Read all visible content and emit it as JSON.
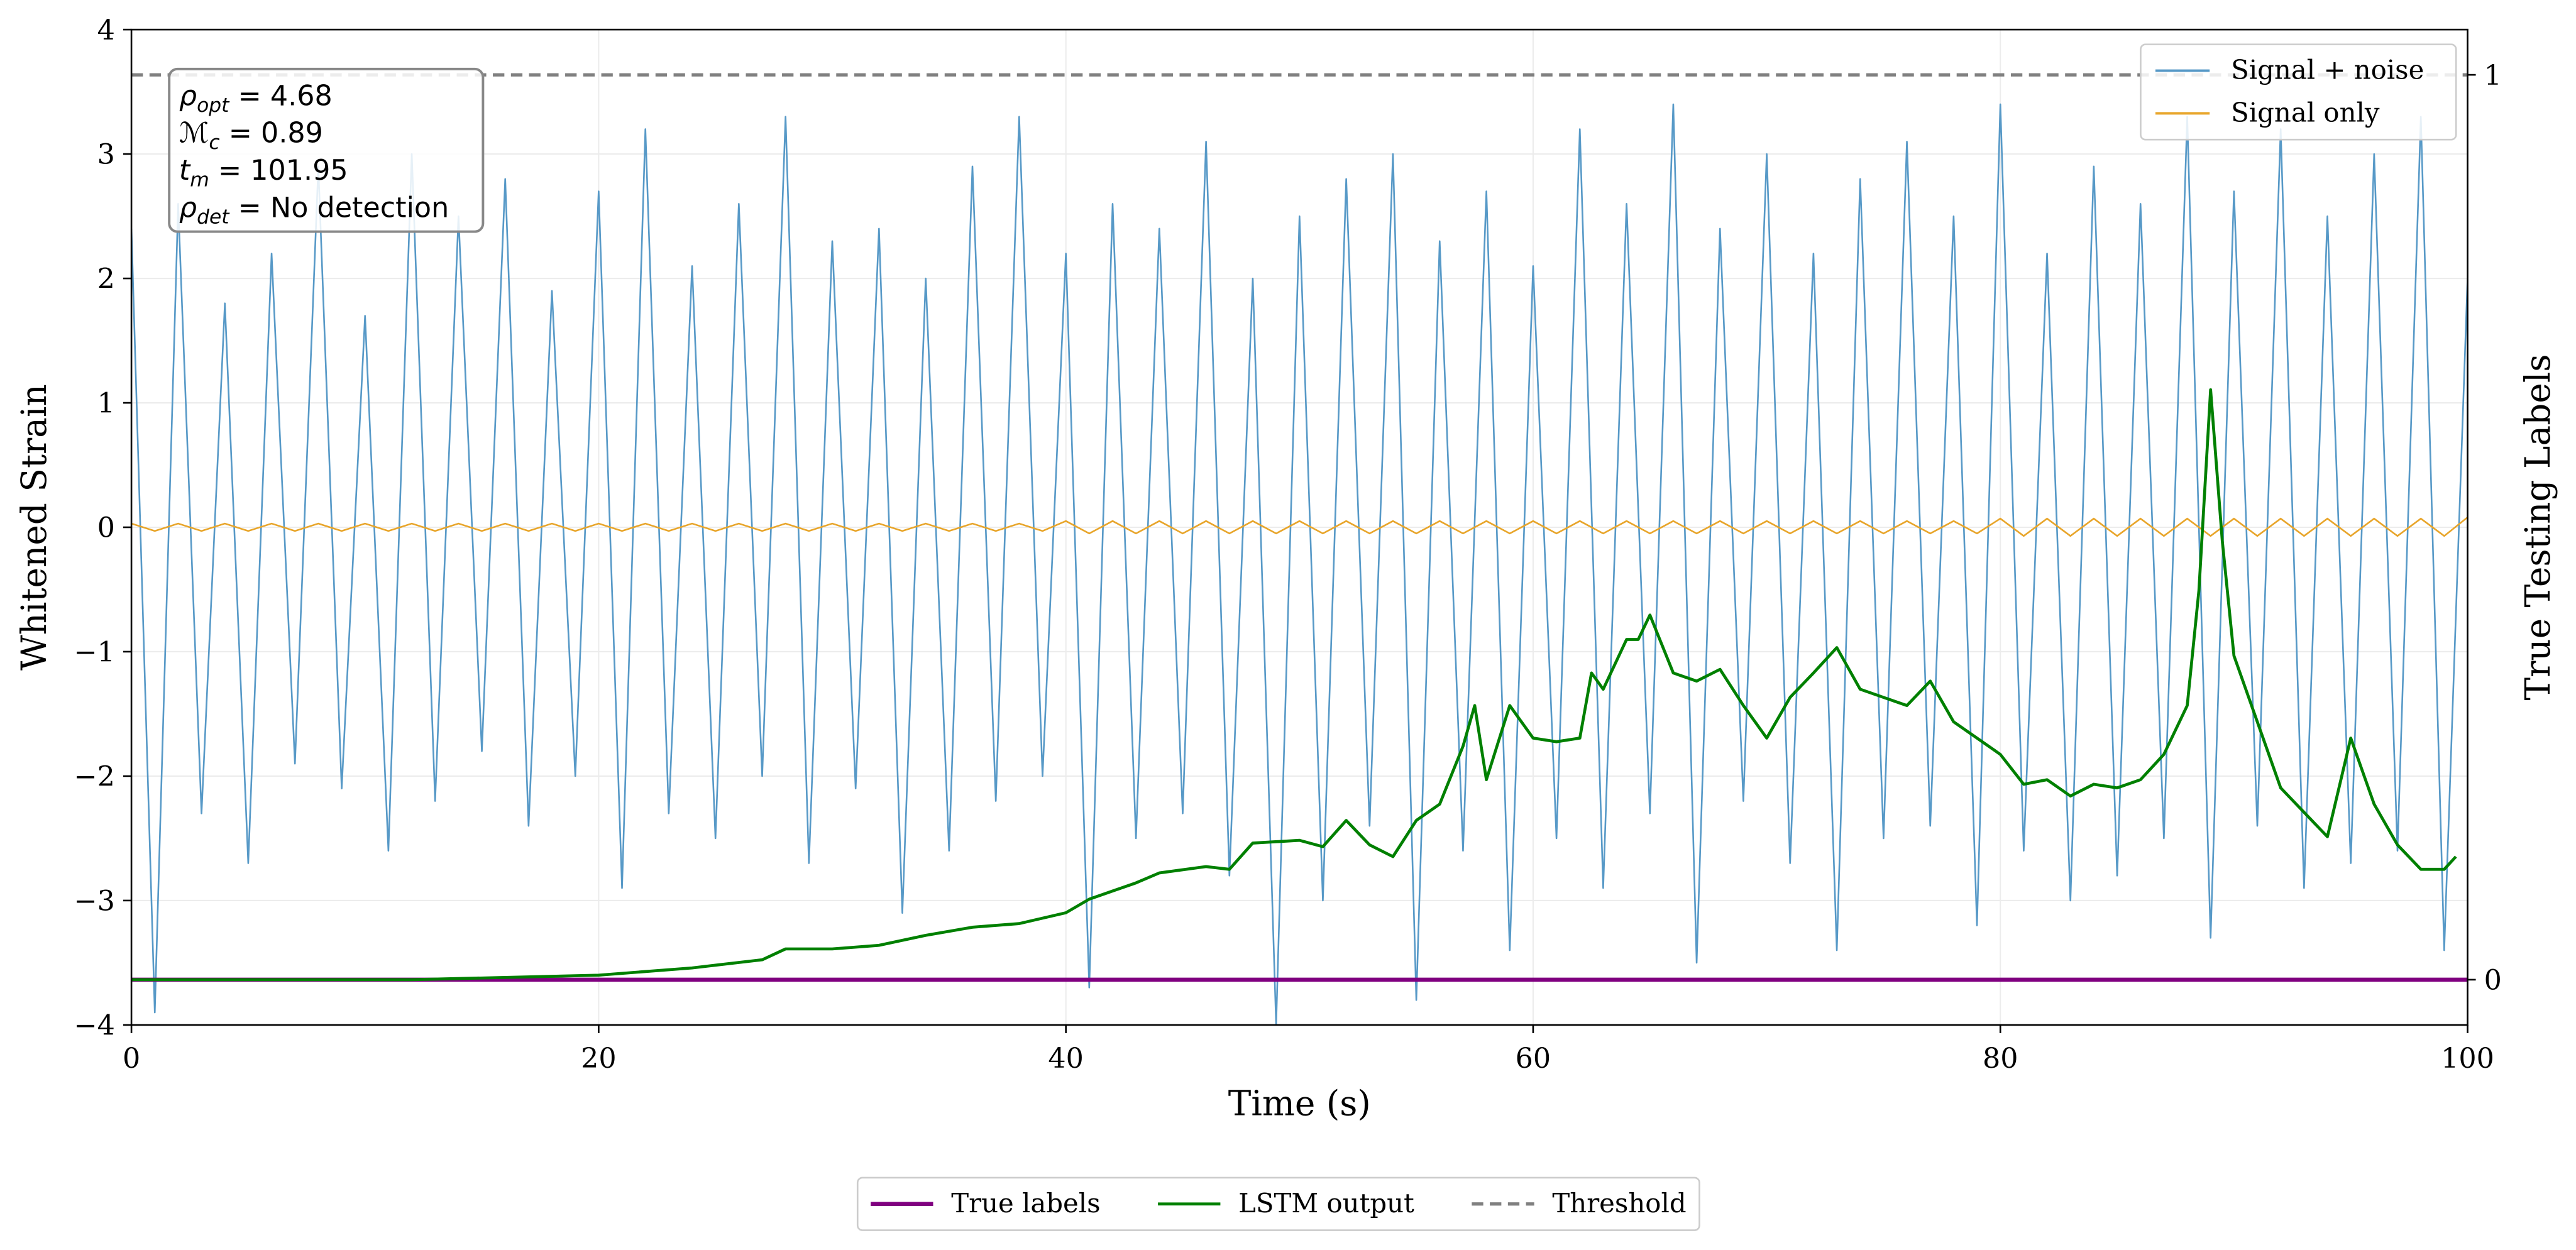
{
  "chart_data": {
    "type": "line",
    "xlabel": "Time (s)",
    "ylabel": "Whitened Strain",
    "y2label": "True Testing Labels",
    "xlim": [
      0,
      100
    ],
    "xticks": [
      0,
      20,
      40,
      60,
      80,
      100
    ],
    "ylim": [
      -4,
      4
    ],
    "yticks": [
      {
        "value": -4,
        "label": "−4"
      },
      {
        "value": -3,
        "label": "−3"
      },
      {
        "value": -2,
        "label": "−2"
      },
      {
        "value": -1,
        "label": "−1"
      },
      0,
      1,
      2,
      3,
      4
    ],
    "y2lim": [
      -0.05,
      1.05
    ],
    "y2ticks": [
      0,
      1
    ],
    "grid": true,
    "annotations": [
      {
        "symbol": "ρ",
        "sub": "opt",
        "text": " = 4.68"
      },
      {
        "symbol": "ℳ",
        "sub": "c",
        "text": " = 0.89"
      },
      {
        "symbol": "t",
        "sub": "m",
        "text": " = 101.95"
      },
      {
        "symbol": "ρ",
        "sub": "det",
        "text": " = No detection"
      }
    ],
    "x": [
      0,
      1,
      2,
      3,
      4,
      5,
      6,
      7,
      8,
      9,
      10,
      11,
      12,
      13,
      14,
      15,
      16,
      17,
      18,
      19,
      20,
      21,
      22,
      23,
      24,
      25,
      26,
      27,
      28,
      29,
      30,
      31,
      32,
      33,
      34,
      35,
      36,
      37,
      38,
      39,
      40,
      41,
      42,
      43,
      44,
      45,
      46,
      47,
      48,
      49,
      50,
      51,
      52,
      53,
      54,
      55,
      56,
      57,
      58,
      59,
      60,
      61,
      62,
      63,
      64,
      65,
      66,
      67,
      68,
      69,
      70,
      71,
      72,
      73,
      74,
      75,
      76,
      77,
      78,
      79,
      80,
      81,
      82,
      83,
      84,
      85,
      86,
      87,
      88,
      89,
      90,
      91,
      92,
      93,
      94,
      95,
      96,
      97,
      98,
      99,
      100
    ],
    "series": [
      {
        "name": "Signal + noise",
        "color": "#5799c7",
        "legend": "upper right",
        "values": [
          2.4,
          -3.9,
          2.6,
          -2.3,
          1.8,
          -2.7,
          2.2,
          -1.9,
          2.9,
          -2.1,
          1.7,
          -2.6,
          3.0,
          -2.2,
          2.5,
          -1.8,
          2.8,
          -2.4,
          1.9,
          -2.0,
          2.7,
          -2.9,
          3.2,
          -2.3,
          2.1,
          -2.5,
          2.6,
          -2.0,
          3.3,
          -2.7,
          2.3,
          -2.1,
          2.4,
          -3.1,
          2.0,
          -2.6,
          2.9,
          -2.2,
          3.3,
          -2.0,
          2.2,
          -3.7,
          2.6,
          -2.5,
          2.4,
          -2.3,
          3.1,
          -2.8,
          2.0,
          -4.0,
          2.5,
          -3.0,
          2.8,
          -2.4,
          3.0,
          -3.8,
          2.3,
          -2.6,
          2.7,
          -3.4,
          2.1,
          -2.5,
          3.2,
          -2.9,
          2.6,
          -2.3,
          3.4,
          -3.5,
          2.4,
          -2.2,
          3.0,
          -2.7,
          2.2,
          -3.4,
          2.8,
          -2.5,
          3.1,
          -2.4,
          2.5,
          -3.2,
          3.4,
          -2.6,
          2.2,
          -3.0,
          2.9,
          -2.8,
          2.6,
          -2.5,
          3.3,
          -3.3,
          2.7,
          -2.4,
          3.2,
          -2.9,
          2.5,
          -2.7,
          3.0,
          -2.6,
          3.3,
          -3.4,
          2.0
        ]
      },
      {
        "name": "Signal only",
        "color": "#e8a52a",
        "legend": "upper right",
        "values": [
          0.03,
          -0.03,
          0.03,
          -0.03,
          0.03,
          -0.03,
          0.03,
          -0.03,
          0.03,
          -0.03,
          0.03,
          -0.03,
          0.03,
          -0.03,
          0.03,
          -0.03,
          0.03,
          -0.03,
          0.03,
          -0.03,
          0.03,
          -0.03,
          0.03,
          -0.03,
          0.03,
          -0.03,
          0.03,
          -0.03,
          0.03,
          -0.03,
          0.03,
          -0.03,
          0.03,
          -0.03,
          0.03,
          -0.03,
          0.03,
          -0.03,
          0.03,
          -0.03,
          0.05,
          -0.05,
          0.05,
          -0.05,
          0.05,
          -0.05,
          0.05,
          -0.05,
          0.05,
          -0.05,
          0.05,
          -0.05,
          0.05,
          -0.05,
          0.05,
          -0.05,
          0.05,
          -0.05,
          0.05,
          -0.05,
          0.05,
          -0.05,
          0.05,
          -0.05,
          0.05,
          -0.05,
          0.05,
          -0.05,
          0.05,
          -0.05,
          0.05,
          -0.05,
          0.05,
          -0.05,
          0.05,
          -0.05,
          0.05,
          -0.05,
          0.05,
          -0.05,
          0.07,
          -0.07,
          0.07,
          -0.07,
          0.07,
          -0.07,
          0.07,
          -0.07,
          0.07,
          -0.07,
          0.07,
          -0.07,
          0.07,
          -0.07,
          0.07,
          -0.07,
          0.07,
          -0.07,
          0.07,
          -0.07,
          0.08
        ]
      },
      {
        "name": "True labels",
        "color": "#800080",
        "axis": "y2",
        "legend": "lower center",
        "width": 2.5,
        "x": [
          0,
          100
        ],
        "values": [
          0,
          0
        ]
      },
      {
        "name": "LSTM output",
        "color": "#008000",
        "axis": "y2",
        "legend": "lower center",
        "width": 1.8,
        "x": [
          0,
          12,
          20,
          24,
          27,
          28,
          30,
          32,
          34,
          36,
          38,
          40,
          41,
          43,
          44,
          46,
          47,
          48,
          50,
          51,
          52,
          53,
          54,
          55,
          56,
          57,
          57.5,
          58,
          59,
          60,
          61,
          62,
          62.5,
          63,
          64,
          64.5,
          65,
          66,
          67,
          68,
          69,
          70,
          71,
          72,
          73,
          74,
          75,
          76,
          77,
          78,
          79,
          80,
          81,
          82,
          83,
          84,
          85,
          86,
          87,
          88,
          88.5,
          89,
          89.5,
          90,
          91,
          92,
          93,
          94,
          95,
          96,
          97,
          98,
          99,
          99.5
        ],
        "values": [
          0,
          0,
          0.005,
          0.013,
          0.022,
          0.034,
          0.034,
          0.038,
          0.049,
          0.058,
          0.062,
          0.074,
          0.089,
          0.107,
          0.118,
          0.125,
          0.122,
          0.151,
          0.154,
          0.147,
          0.176,
          0.149,
          0.136,
          0.176,
          0.194,
          0.258,
          0.303,
          0.221,
          0.303,
          0.267,
          0.263,
          0.267,
          0.339,
          0.321,
          0.376,
          0.376,
          0.403,
          0.339,
          0.33,
          0.343,
          0.303,
          0.267,
          0.312,
          0.339,
          0.367,
          0.321,
          0.312,
          0.303,
          0.33,
          0.285,
          0.267,
          0.249,
          0.216,
          0.221,
          0.203,
          0.216,
          0.212,
          0.221,
          0.249,
          0.303,
          0.43,
          0.652,
          0.485,
          0.358,
          0.285,
          0.212,
          0.185,
          0.158,
          0.267,
          0.194,
          0.149,
          0.122,
          0.122,
          0.136
        ]
      },
      {
        "name": "Threshold",
        "color": "#808080",
        "axis": "y2",
        "legend": "lower center",
        "dash": true,
        "width": 2,
        "x": [
          0,
          100
        ],
        "values": [
          1,
          1
        ]
      }
    ]
  }
}
